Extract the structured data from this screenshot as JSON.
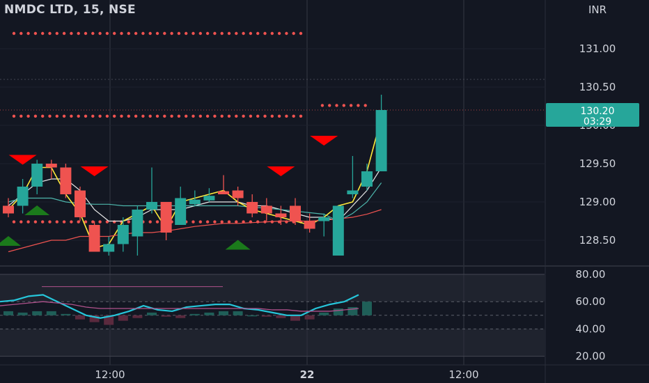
{
  "header": {
    "title": "NMDC LTD, 15, NSE"
  },
  "currency": "INR",
  "colors": {
    "background": "#131722",
    "bull": "#26a69a",
    "bear": "#ef5350",
    "signal_up": "#1b7a1b",
    "signal_down": "#ff0000",
    "ma_white": "#e8e8e8",
    "ma_yellow": "#ffeb3b",
    "ma_teal": "#4db6ac",
    "ma_red": "#ef5350",
    "rsi_line": "#26c6da",
    "rsi_signal": "#b0528c",
    "price_tag": "#26a69a"
  },
  "chart_data": [
    {
      "type": "candlestick",
      "title": "NMDC LTD, 15, NSE",
      "y_unit": "INR",
      "ylim": [
        128.3,
        131.35
      ],
      "y_ticks": [
        "131.00",
        "130.50",
        "130.00",
        "129.50",
        "129.00",
        "128.50"
      ],
      "x_ticks": [
        "12:00",
        "22",
        "12:00"
      ],
      "grid": true,
      "last_price": "130.20",
      "countdown": "03:29",
      "candles": [
        {
          "o": 128.95,
          "h": 129.05,
          "l": 128.8,
          "c": 128.85
        },
        {
          "o": 128.95,
          "h": 129.3,
          "l": 128.85,
          "c": 129.2
        },
        {
          "o": 129.2,
          "h": 129.55,
          "l": 129.1,
          "c": 129.5
        },
        {
          "o": 129.5,
          "h": 129.55,
          "l": 129.3,
          "c": 129.45
        },
        {
          "o": 129.45,
          "h": 129.5,
          "l": 129.05,
          "c": 129.1
        },
        {
          "o": 129.15,
          "h": 129.2,
          "l": 128.75,
          "c": 128.8
        },
        {
          "o": 128.7,
          "h": 128.75,
          "l": 128.35,
          "c": 128.35
        },
        {
          "o": 128.35,
          "h": 128.55,
          "l": 128.3,
          "c": 128.45
        },
        {
          "o": 128.45,
          "h": 128.8,
          "l": 128.35,
          "c": 128.7
        },
        {
          "o": 128.55,
          "h": 128.95,
          "l": 128.3,
          "c": 128.9
        },
        {
          "o": 128.9,
          "h": 129.45,
          "l": 128.85,
          "c": 129.0
        },
        {
          "o": 129.0,
          "h": 129.0,
          "l": 128.5,
          "c": 128.6
        },
        {
          "o": 128.7,
          "h": 129.2,
          "l": 128.7,
          "c": 129.05
        },
        {
          "o": 128.97,
          "h": 129.15,
          "l": 128.95,
          "c": 129.03
        },
        {
          "o": 129.02,
          "h": 129.18,
          "l": 129.0,
          "c": 129.08
        },
        {
          "o": 129.14,
          "h": 129.35,
          "l": 129.1,
          "c": 129.1
        },
        {
          "o": 129.15,
          "h": 129.2,
          "l": 128.95,
          "c": 129.05
        },
        {
          "o": 129.0,
          "h": 129.1,
          "l": 128.8,
          "c": 128.85
        },
        {
          "o": 128.95,
          "h": 129.05,
          "l": 128.75,
          "c": 128.85
        },
        {
          "o": 128.85,
          "h": 128.95,
          "l": 128.7,
          "c": 128.8
        },
        {
          "o": 128.95,
          "h": 129.05,
          "l": 128.7,
          "c": 128.75
        },
        {
          "o": 128.75,
          "h": 128.85,
          "l": 128.6,
          "c": 128.65
        },
        {
          "o": 128.75,
          "h": 128.85,
          "l": 128.55,
          "c": 128.8
        },
        {
          "o": 128.3,
          "h": 128.95,
          "l": 128.3,
          "c": 128.95
        },
        {
          "o": 129.1,
          "h": 129.6,
          "l": 129.05,
          "c": 129.15
        },
        {
          "o": 129.2,
          "h": 129.5,
          "l": 129.15,
          "c": 129.4
        },
        {
          "o": 129.4,
          "h": 130.4,
          "l": 129.4,
          "c": 130.2
        }
      ],
      "series": [
        {
          "values": [
            128.95,
            129.1,
            129.25,
            129.3,
            129.3,
            129.15,
            128.9,
            128.75,
            128.75,
            128.8,
            128.9,
            128.9,
            128.9,
            128.95,
            129.0,
            129.0,
            129.0,
            128.95,
            128.95,
            128.9,
            128.85,
            128.8,
            128.8,
            128.75,
            128.95,
            129.15,
            129.45
          ]
        },
        {
          "values": [
            129.0,
            129.05,
            129.05,
            129.05,
            129.0,
            128.98,
            128.97,
            128.97,
            128.95,
            128.95,
            128.95,
            128.95,
            128.95,
            128.95,
            128.95,
            128.95,
            128.95,
            128.93,
            128.92,
            128.9,
            128.88,
            128.86,
            128.84,
            128.75,
            128.85,
            129.0,
            129.25
          ]
        },
        {
          "values": [
            128.9,
            129.1,
            129.45,
            129.45,
            129.1,
            128.85,
            128.4,
            128.45,
            128.75,
            128.85,
            128.95,
            128.65,
            129.0,
            129.05,
            129.1,
            129.15,
            129.0,
            128.9,
            128.85,
            128.8,
            128.75,
            128.7,
            128.8,
            128.95,
            129.0,
            129.4,
            130.1
          ]
        },
        {
          "values": [
            128.35,
            128.4,
            128.45,
            128.5,
            128.5,
            128.55,
            128.55,
            128.55,
            128.58,
            128.6,
            128.6,
            128.62,
            128.65,
            128.68,
            128.7,
            128.72,
            128.72,
            128.73,
            128.74,
            128.75,
            128.75,
            128.75,
            128.76,
            128.78,
            128.8,
            128.84,
            128.9
          ]
        }
      ],
      "levels": [
        {
          "price": 131.2,
          "from": 0,
          "to": 20
        },
        {
          "price": 130.12,
          "from": 0,
          "to": 20
        },
        {
          "price": 130.26,
          "from": 21.5,
          "to": 24.5
        },
        {
          "price": 128.74,
          "from": 0,
          "to": 20
        }
      ],
      "signals_up": [
        {
          "i": 0,
          "p": 128.5
        },
        {
          "i": 2,
          "p": 128.9
        },
        {
          "i": 16,
          "p": 128.45
        }
      ],
      "signals_down": [
        {
          "i": 1,
          "p": 129.55
        },
        {
          "i": 6,
          "p": 129.4
        },
        {
          "i": 19,
          "p": 129.4
        },
        {
          "i": 22,
          "p": 129.8
        }
      ]
    },
    {
      "type": "line",
      "title": "",
      "ylim": [
        15,
        80
      ],
      "y_ticks": [
        "80.00",
        "60.00",
        "40.00",
        "20.00"
      ],
      "levels": [
        60,
        50,
        40
      ],
      "series": [
        {
          "values": [
            60,
            61,
            64,
            65,
            60,
            55,
            50,
            48,
            50,
            53,
            57,
            54,
            53,
            56,
            57,
            58,
            58,
            55,
            54,
            52,
            50,
            50,
            55,
            58,
            60,
            65
          ]
        },
        {
          "values": [
            57,
            58,
            59,
            60,
            59,
            58,
            56,
            55,
            55,
            55,
            55,
            55,
            55,
            55,
            55,
            55,
            55,
            55,
            55,
            54,
            54,
            53,
            53,
            53,
            54,
            55
          ]
        }
      ],
      "histogram": [
        3,
        2,
        3,
        3,
        1,
        -3,
        -5,
        -7,
        -4,
        -2,
        2,
        -1,
        -2,
        1,
        2,
        3,
        3,
        0,
        -1,
        -2,
        -4,
        -3,
        2,
        5,
        6,
        10
      ]
    }
  ]
}
